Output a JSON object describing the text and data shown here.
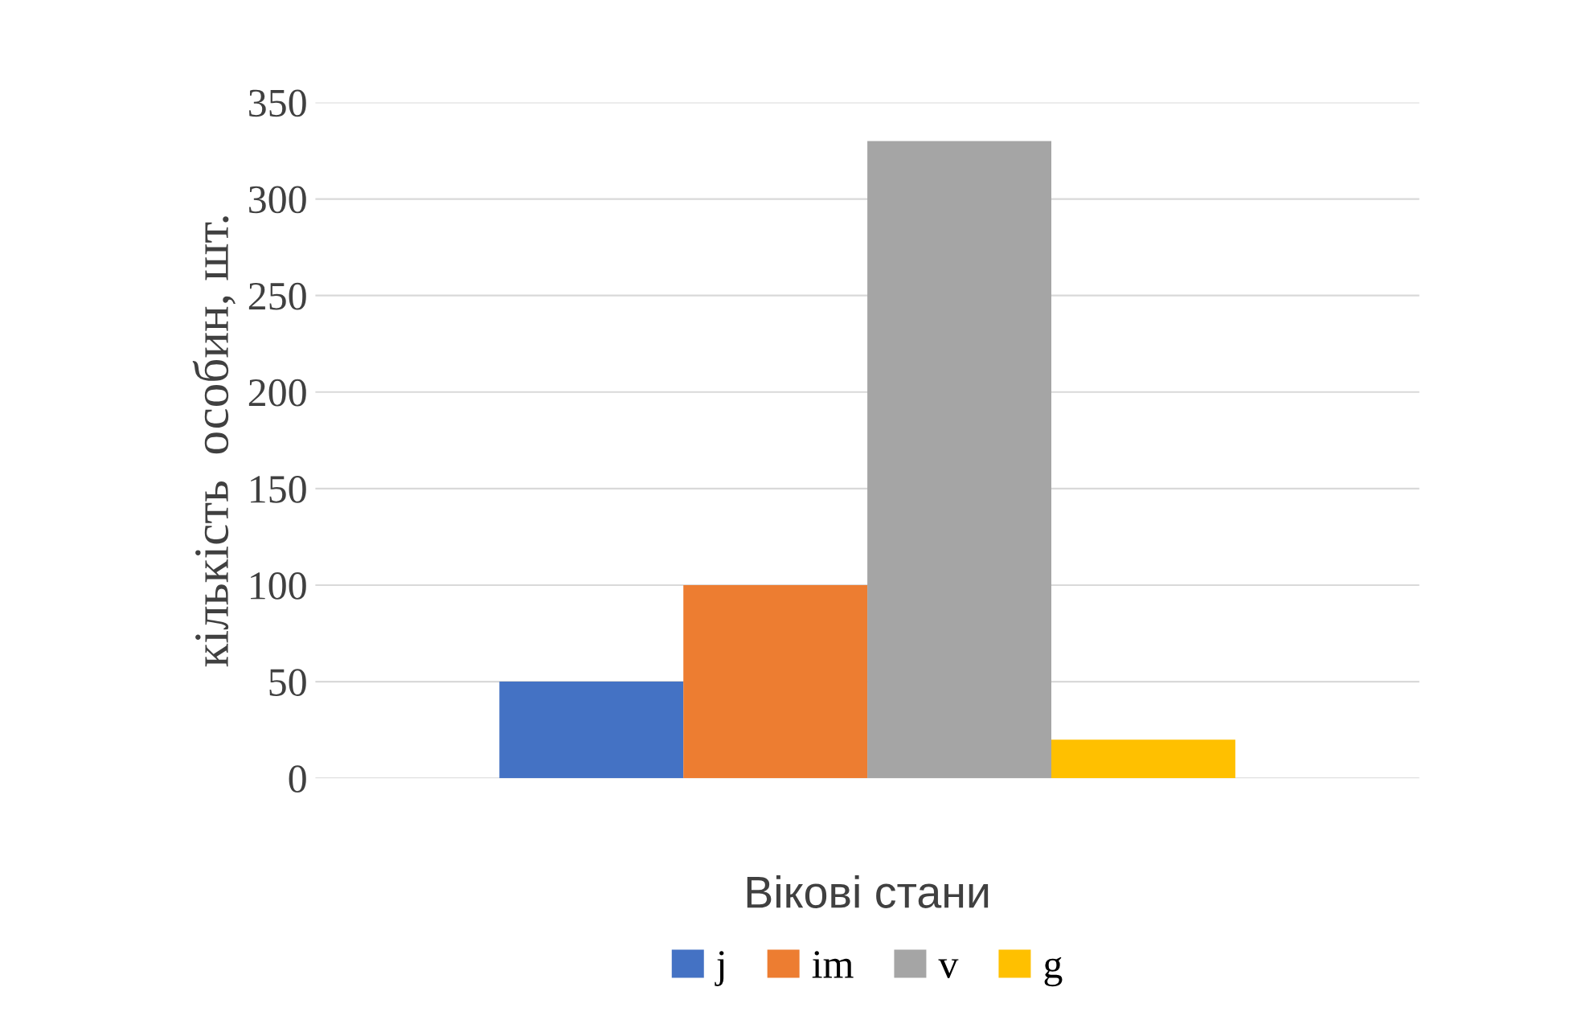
{
  "chart_data": {
    "type": "bar",
    "xlabel": "Вікові стани",
    "ylabel": "кількість  особин, шт.",
    "categories": [
      null
    ],
    "series": [
      {
        "name": "j",
        "color": "#4472c4",
        "values": [
          50
        ]
      },
      {
        "name": "im",
        "color": "#ed7d31",
        "values": [
          100
        ]
      },
      {
        "name": "v",
        "color": "#a5a5a5",
        "values": [
          330
        ]
      },
      {
        "name": "g",
        "color": "#ffc000",
        "values": [
          20
        ]
      }
    ],
    "ylim": [
      0,
      350
    ],
    "yticks": [
      0,
      50,
      100,
      150,
      200,
      250,
      300,
      350
    ],
    "grid": "y",
    "legend": "bottom"
  }
}
